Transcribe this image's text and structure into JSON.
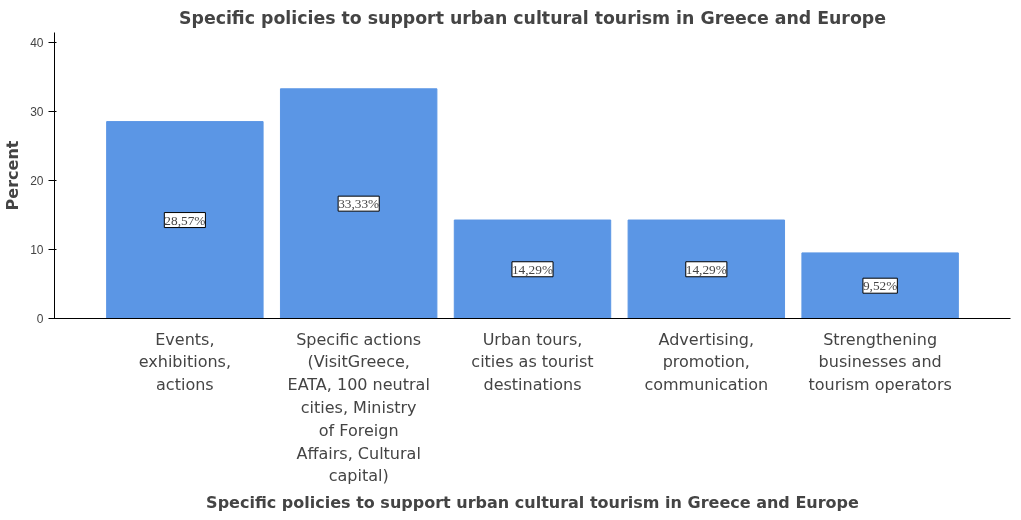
{
  "chart_data": {
    "type": "bar",
    "title": "Specific policies to support urban cultural tourism in Greece and Europe",
    "xlabel": "Specific policies to support urban cultural tourism in Greece and Europe",
    "ylabel": "Percent",
    "categories": [
      "Events, exhibitions, actions",
      "Specific actions (VisitGreece, EATA, 100 neutral cities, Ministry of Foreign Affairs, Cultural capital)",
      "Urban tours, cities as tourist destinations",
      "Advertising, promotion, communication",
      "Strengthening businesses and tourism operators"
    ],
    "values": [
      28.57,
      33.33,
      14.29,
      14.29,
      9.52
    ],
    "value_labels": [
      "28,57%",
      "33,33%",
      "14,29%",
      "14,29%",
      "9,52%"
    ],
    "color": "#5b96e5",
    "ylim": [
      0,
      41.5
    ],
    "yticks": [
      0,
      10,
      20,
      30,
      40
    ],
    "grid": false
  }
}
